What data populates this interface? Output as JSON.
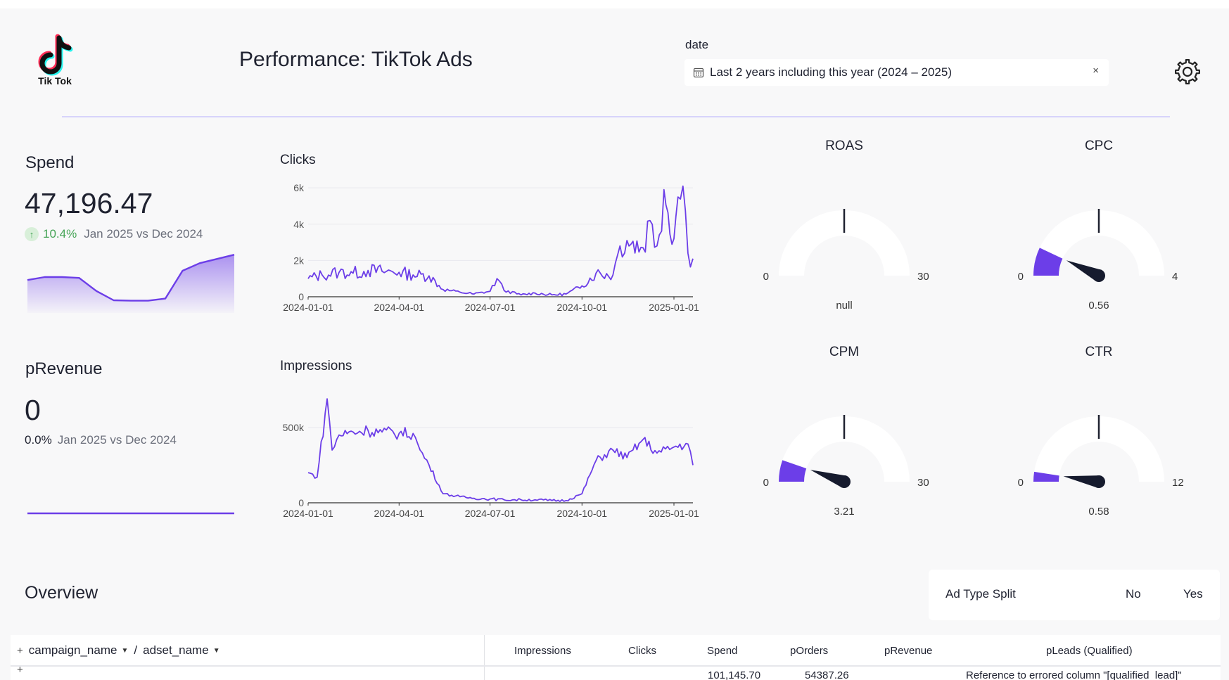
{
  "header": {
    "logo_caption": "Tik Tok",
    "title": "Performance: TikTok Ads",
    "date_filter": {
      "label": "date",
      "value": "Last 2 years including this year (2024 – 2025)",
      "clear_glyph": "×"
    }
  },
  "icons": {
    "logo": "tiktok-logo-icon",
    "settings": "gear-icon",
    "calendar": "calendar-icon"
  },
  "colors": {
    "accent": "#6c3ee8",
    "positive": "#46a457"
  },
  "kpis": {
    "spend": {
      "title": "Spend",
      "value": "47,196.47",
      "change": "10.4%",
      "comparison": "Jan 2025 vs Dec 2024",
      "trend": [
        0.68,
        0.75,
        0.75,
        0.73,
        0.42,
        0.2,
        0.19,
        0.19,
        0.24,
        0.9,
        1.08,
        1.18,
        1.28
      ]
    },
    "prevenue": {
      "title": "pRevenue",
      "value": "0",
      "change": "0.0%",
      "comparison": "Jan 2025 vs Dec 2024",
      "trend": [
        0,
        0
      ]
    }
  },
  "chart_data": [
    {
      "type": "line",
      "title": "Clicks",
      "x_ticks": [
        "2024-01-01",
        "2024-04-01",
        "2024-07-01",
        "2024-10-01",
        "2025-01-01"
      ],
      "y_ticks": [
        "0",
        "2k",
        "4k",
        "6k"
      ],
      "ylim": [
        0,
        6200
      ],
      "x": [
        "2024-01-01",
        "2024-01-15",
        "2024-02-01",
        "2024-02-15",
        "2024-03-01",
        "2024-03-15",
        "2024-04-01",
        "2024-04-15",
        "2024-05-01",
        "2024-05-15",
        "2024-06-01",
        "2024-06-15",
        "2024-07-01",
        "2024-07-08",
        "2024-07-15",
        "2024-08-01",
        "2024-08-15",
        "2024-09-01",
        "2024-09-15",
        "2024-10-01",
        "2024-10-15",
        "2024-11-01",
        "2024-11-08",
        "2024-11-15",
        "2024-12-01",
        "2024-12-08",
        "2024-12-15",
        "2024-12-22",
        "2025-01-01",
        "2025-01-05",
        "2025-01-10",
        "2025-01-15",
        "2025-01-20"
      ],
      "values": [
        1000,
        1200,
        1350,
        1300,
        1450,
        1400,
        1350,
        1200,
        1150,
        400,
        250,
        150,
        300,
        1000,
        350,
        100,
        200,
        100,
        150,
        600,
        1300,
        1200,
        2800,
        3100,
        2700,
        4200,
        2800,
        5900,
        3200,
        5500,
        6100,
        2400,
        2100
      ]
    },
    {
      "type": "line",
      "title": "Impressions",
      "x_ticks": [
        "2024-01-01",
        "2024-04-01",
        "2024-07-01",
        "2024-10-01",
        "2025-01-01"
      ],
      "y_ticks": [
        "0",
        "500k"
      ],
      "ylim": [
        0,
        700000
      ],
      "x": [
        "2024-01-01",
        "2024-01-10",
        "2024-01-20",
        "2024-01-25",
        "2024-02-01",
        "2024-02-15",
        "2024-03-01",
        "2024-03-15",
        "2024-04-01",
        "2024-04-15",
        "2024-04-22",
        "2024-05-01",
        "2024-05-15",
        "2024-06-01",
        "2024-06-15",
        "2024-07-01",
        "2024-07-15",
        "2024-08-01",
        "2024-08-15",
        "2024-09-01",
        "2024-09-15",
        "2024-10-01",
        "2024-10-15",
        "2024-11-01",
        "2024-11-15",
        "2024-12-01",
        "2024-12-15",
        "2025-01-01",
        "2025-01-15",
        "2025-01-20"
      ],
      "values": [
        200000,
        170000,
        690000,
        350000,
        450000,
        470000,
        480000,
        470000,
        460000,
        460000,
        350000,
        250000,
        60000,
        40000,
        30000,
        25000,
        20000,
        20000,
        20000,
        15000,
        15000,
        60000,
        280000,
        350000,
        300000,
        420000,
        330000,
        370000,
        390000,
        250000
      ]
    }
  ],
  "gauges": [
    {
      "title": "ROAS",
      "min": "0",
      "max": "30",
      "value_label": "null",
      "value": null,
      "range_max": 30
    },
    {
      "title": "CPC",
      "min": "0",
      "max": "4",
      "value_label": "0.56",
      "value": 0.56,
      "range_max": 4
    },
    {
      "title": "CPM",
      "min": "0",
      "max": "30",
      "value_label": "3.21",
      "value": 3.21,
      "range_max": 30
    },
    {
      "title": "CTR",
      "min": "0",
      "max": "12",
      "value_label": "0.58",
      "value": 0.58,
      "range_max": 12
    }
  ],
  "overview": {
    "title": "Overview",
    "split": {
      "label": "Ad Type Split",
      "options": [
        "No",
        "Yes"
      ]
    },
    "table": {
      "row_dims": [
        "campaign_name",
        "adset_name"
      ],
      "row_dim_separator": "/",
      "plus_glyph": "+",
      "columns": [
        "Impressions",
        "Clicks",
        "Spend",
        "pOrders",
        "pRevenue",
        "pLeads (Qualified)"
      ],
      "first_row": {
        "spend": "101,145.70",
        "porders": "54387.26",
        "pleads": "Reference to errored column \"[qualified_lead]\""
      }
    }
  }
}
